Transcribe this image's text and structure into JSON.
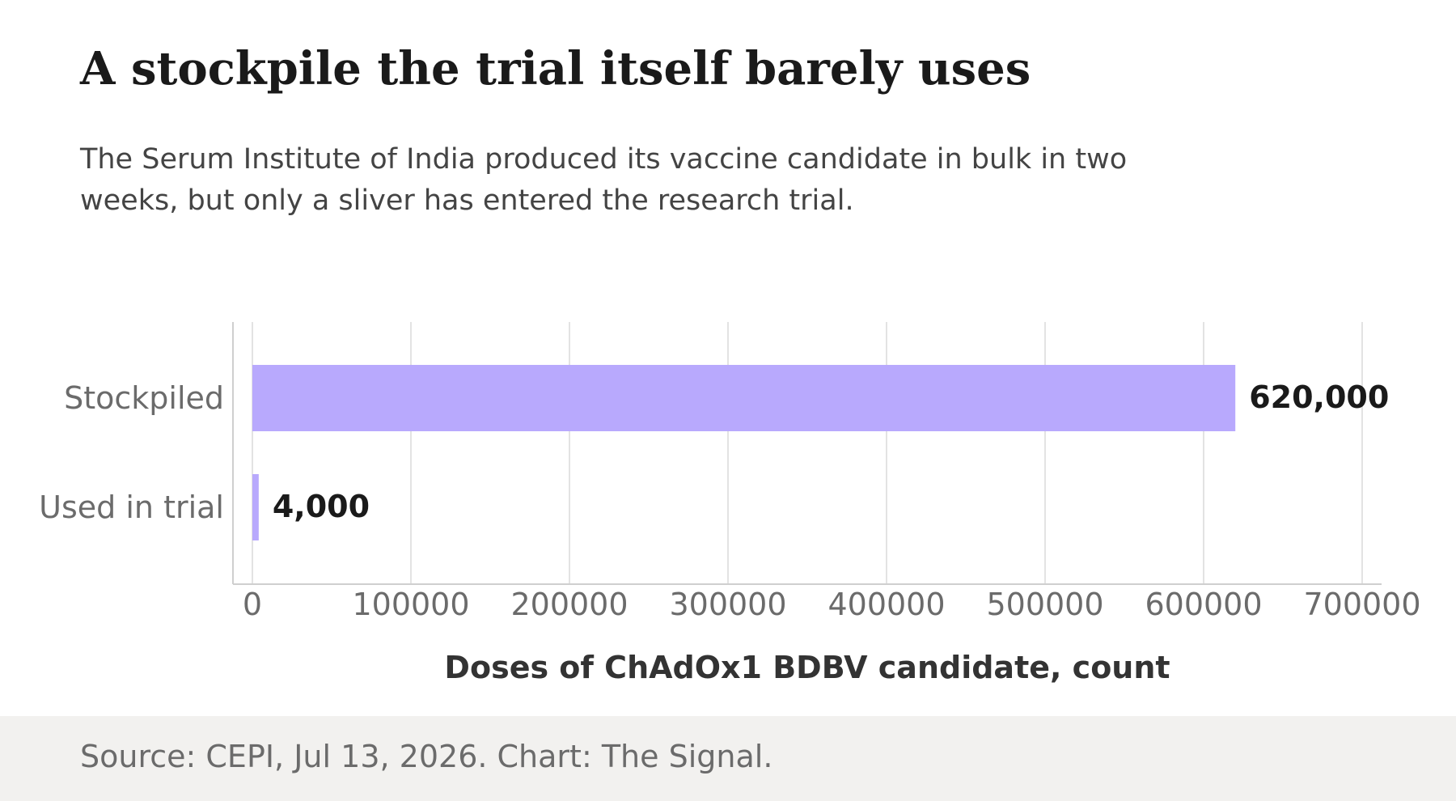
{
  "colors": {
    "bar": "#b8a9fd",
    "grid": "#e3e3e3",
    "axis": "#cfcfcf",
    "text_dark": "#1a1a1a",
    "text_muted": "#6b6b6b",
    "footer_bg": "#f2f1ef"
  },
  "header": {
    "title": "A stockpile the trial itself barely uses",
    "subtitle": "The Serum Institute of India produced its vaccine candidate in bulk in two weeks, but only a sliver has entered the research trial."
  },
  "footer": {
    "source": "Source: CEPI, Jul 13, 2026. Chart: The Signal."
  },
  "chart_data": {
    "type": "bar",
    "orientation": "horizontal",
    "title": "A stockpile the trial itself barely uses",
    "subtitle": "The Serum Institute of India produced its vaccine candidate in bulk in two weeks, but only a sliver has entered the research trial.",
    "categories": [
      "Stockpiled",
      "Used in trial"
    ],
    "values": [
      620000,
      4000
    ],
    "value_labels": [
      "620,000",
      "4,000"
    ],
    "xlabel": "Doses of ChAdOx1 BDBV candidate, count",
    "ylabel": "",
    "xlim": [
      0,
      700000
    ],
    "xticks": [
      0,
      100000,
      200000,
      300000,
      400000,
      500000,
      600000,
      700000
    ],
    "xtick_labels": [
      "0",
      "100000",
      "200000",
      "300000",
      "400000",
      "500000",
      "600000",
      "700000"
    ],
    "grid": "vertical",
    "legend": "none"
  }
}
